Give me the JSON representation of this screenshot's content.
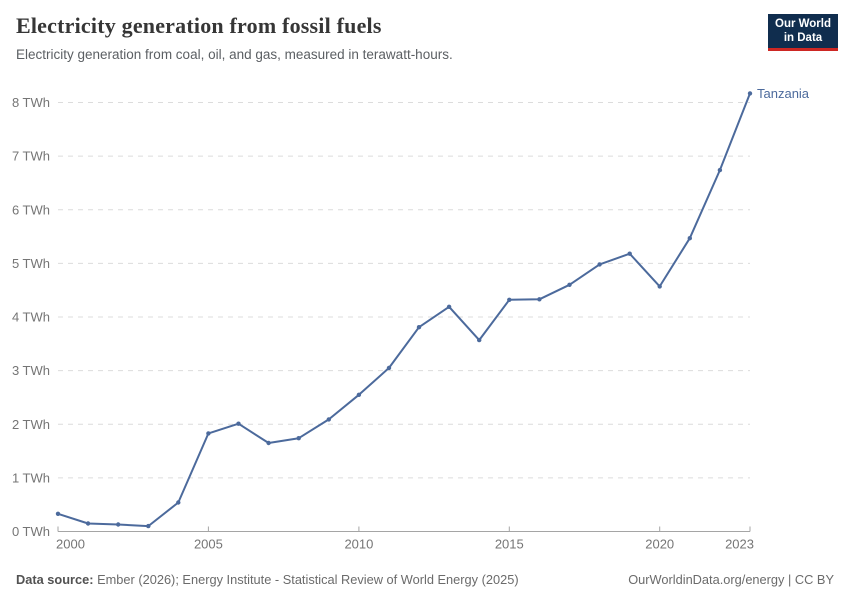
{
  "header": {
    "title": "Electricity generation from fossil fuels",
    "subtitle": "Electricity generation from coal, oil, and gas, measured in terawatt-hours."
  },
  "logo": {
    "line1": "Our World",
    "line2": "in Data",
    "bg_color": "#102d4e",
    "accent_color": "#cd2723"
  },
  "chart_data": {
    "type": "line",
    "title": "Electricity generation from fossil fuels",
    "subtitle": "Electricity generation from coal, oil, and gas, measured in terawatt-hours.",
    "x": [
      2000,
      2001,
      2002,
      2003,
      2004,
      2005,
      2006,
      2007,
      2008,
      2009,
      2010,
      2011,
      2012,
      2013,
      2014,
      2015,
      2016,
      2017,
      2018,
      2019,
      2020,
      2021,
      2022,
      2023
    ],
    "series": [
      {
        "name": "Tanzania",
        "color": "#4c6a9c",
        "values": [
          0.33,
          0.15,
          0.13,
          0.1,
          0.54,
          1.83,
          2.01,
          1.65,
          1.74,
          2.09,
          2.55,
          3.05,
          3.81,
          4.19,
          3.57,
          4.32,
          4.33,
          4.6,
          4.98,
          5.18,
          4.57,
          5.47,
          6.74,
          8.17
        ]
      }
    ],
    "xlim": [
      2000,
      2023
    ],
    "ylim": [
      0,
      8
    ],
    "xticks": [
      2000,
      2005,
      2010,
      2015,
      2020,
      2023
    ],
    "ytick_labels": [
      "0 TWh",
      "1 TWh",
      "2 TWh",
      "3 TWh",
      "4 TWh",
      "5 TWh",
      "6 TWh",
      "7 TWh",
      "8 TWh"
    ],
    "grid": "horizontal dashed",
    "legend_position": "end-of-line label",
    "marker": "point"
  },
  "footer": {
    "source_label": "Data source:",
    "source_text": " Ember (2026); Energy Institute - Statistical Review of World Energy (2025)",
    "right_text": "OurWorldinData.org/energy | CC BY"
  },
  "colors": {
    "line": "#4c6a9c",
    "gridline": "#dcdcdc",
    "axis": "#a5a5a5",
    "tick_text": "#757575",
    "title_text": "#363636",
    "subtitle_text": "#5b5f63"
  }
}
